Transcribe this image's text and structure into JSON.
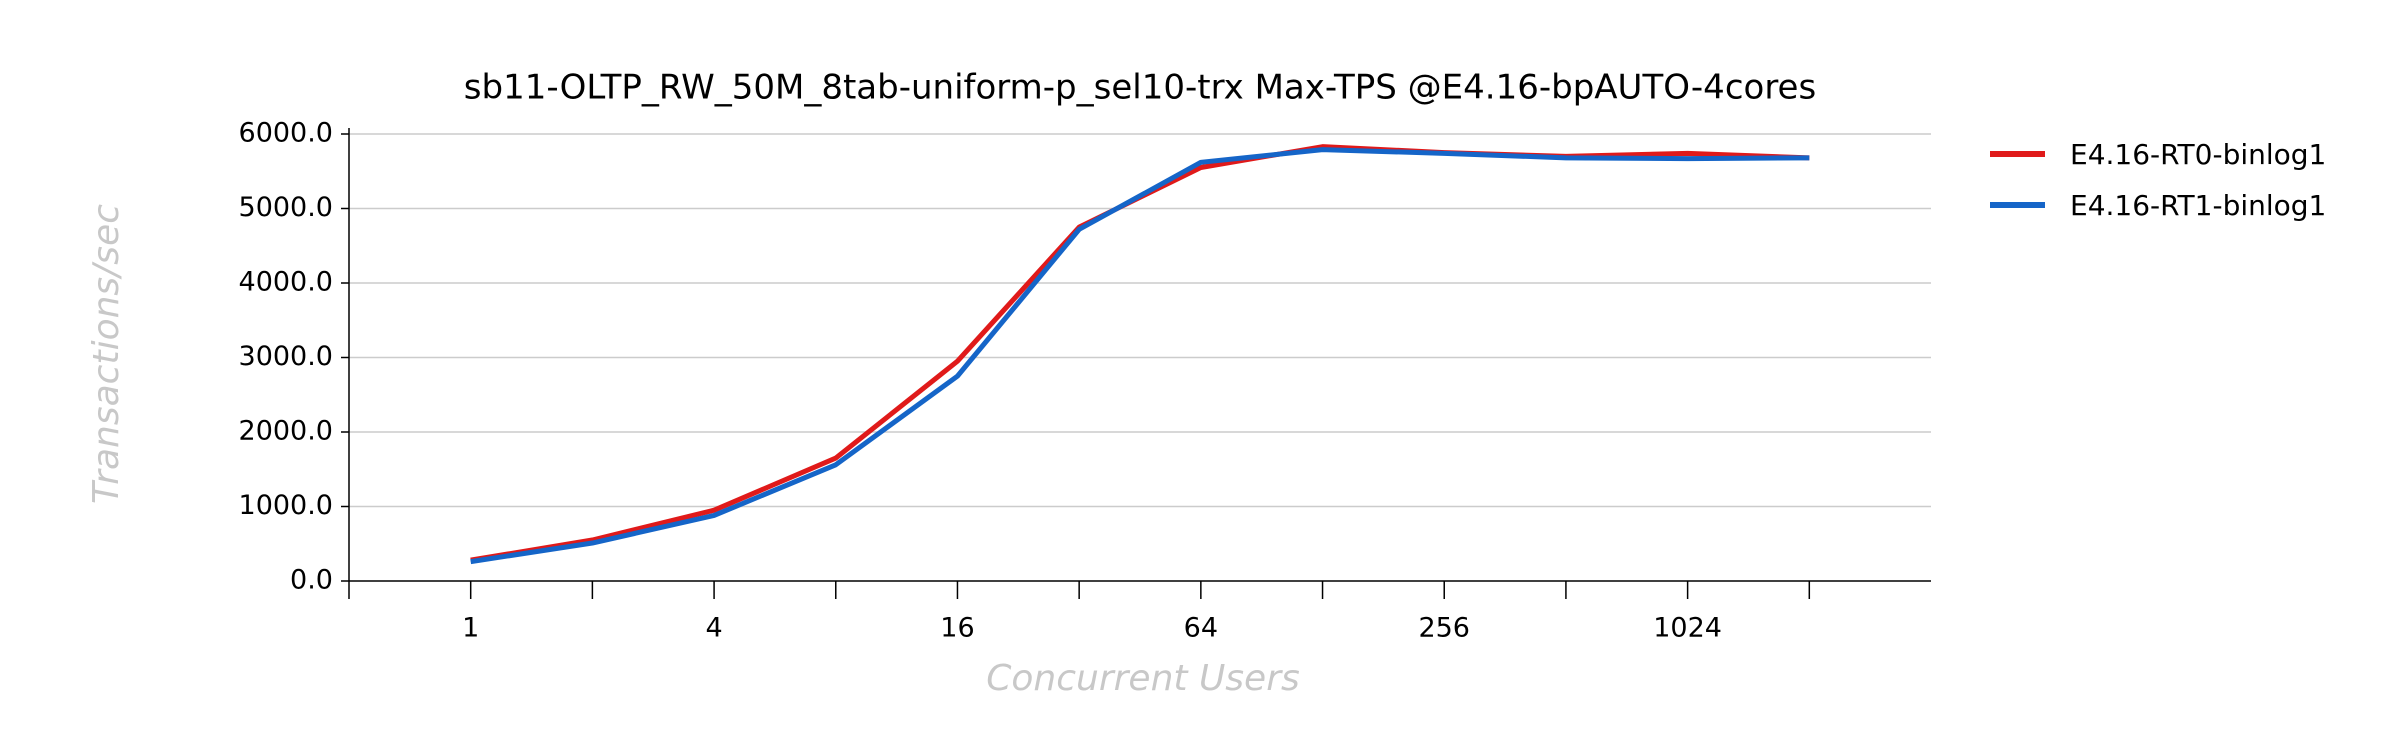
{
  "chart_data": {
    "type": "line",
    "title": "sb11-OLTP_RW_50M_8tab-uniform-p_sel10-trx Max-TPS @E4.16-bpAUTO-4cores",
    "xlabel": "Concurrent Users",
    "ylabel": "Transactions/sec",
    "x": [
      1,
      2,
      4,
      8,
      16,
      32,
      64,
      128,
      256,
      512,
      1024,
      2048
    ],
    "series": [
      {
        "name": "E4.16-RT0-binlog1",
        "color": "#e01a1a",
        "values": [
          280,
          550,
          950,
          1650,
          2950,
          4750,
          5550,
          5830,
          5750,
          5700,
          5740,
          5680
        ]
      },
      {
        "name": "E4.16-RT1-binlog1",
        "color": "#1565c8",
        "values": [
          260,
          510,
          880,
          1560,
          2750,
          4720,
          5620,
          5790,
          5740,
          5680,
          5670,
          5680
        ]
      }
    ],
    "xscale": "log2",
    "xlim": [
      0.5,
      4096
    ],
    "xticks": [
      1,
      4,
      16,
      64,
      256,
      1024
    ],
    "xminor_ticks": [
      0.5,
      2,
      8,
      32,
      128,
      512,
      2048
    ],
    "ylim": [
      0,
      6000
    ],
    "yticks": [
      {
        "value": 0,
        "label": "0.0"
      },
      {
        "value": 1000,
        "label": "1000.0"
      },
      {
        "value": 2000,
        "label": "2000.0"
      },
      {
        "value": 3000,
        "label": "3000.0"
      },
      {
        "value": 4000,
        "label": "4000.0"
      },
      {
        "value": 5000,
        "label": "5000.0"
      },
      {
        "value": 6000,
        "label": "6000.0"
      }
    ],
    "grid": true,
    "legend": "right"
  }
}
